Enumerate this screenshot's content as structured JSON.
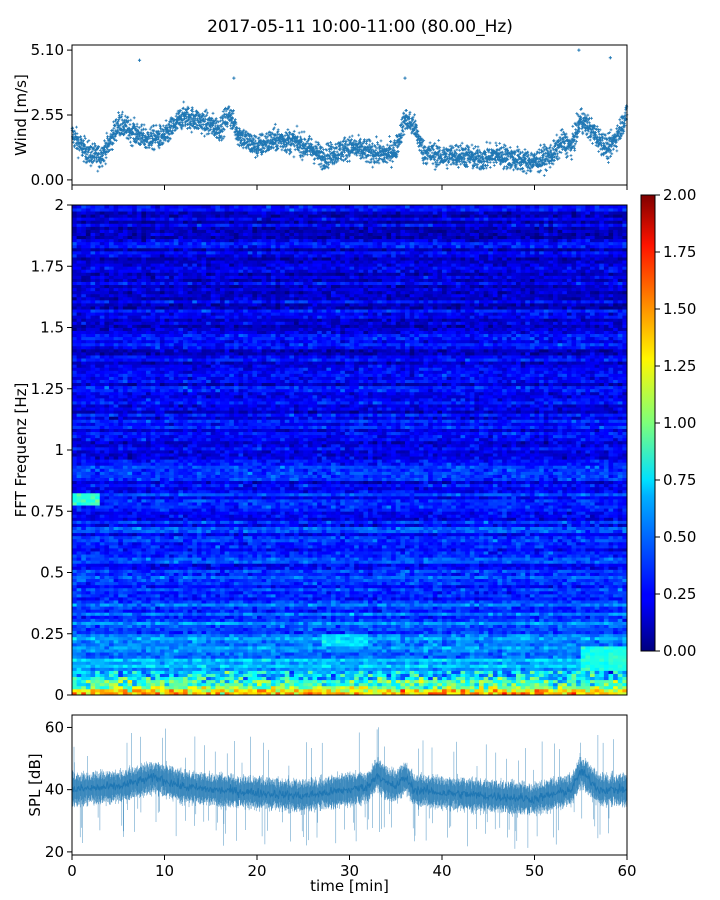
{
  "chart_data": [
    {
      "type": "scatter",
      "title": "2017-05-11 10:00-11:00 (80.00_Hz)",
      "ylabel": "Wind [m/s]",
      "xlim": [
        0,
        60
      ],
      "ylim": [
        -0.2,
        5.3
      ],
      "yticks": [
        "0.00",
        "2.55",
        "5.10"
      ],
      "ytick_values": [
        0,
        2.55,
        5.1
      ],
      "marker": "+",
      "color": "#1f77b4",
      "samples_per_minute": 60,
      "trend": {
        "x": [
          0,
          1,
          2,
          3,
          4,
          5,
          6,
          8,
          10,
          12,
          14,
          16,
          17,
          18,
          19,
          20,
          22,
          24,
          26,
          27,
          28,
          30,
          32,
          34,
          35,
          36,
          37,
          38,
          40,
          42,
          44,
          46,
          48,
          50,
          52,
          53,
          54,
          55,
          56,
          57,
          58,
          59,
          60
        ],
        "y": [
          1.8,
          1.3,
          1.0,
          0.9,
          1.4,
          2.2,
          2.0,
          1.6,
          1.7,
          2.5,
          2.3,
          2.0,
          2.6,
          1.8,
          1.5,
          1.3,
          1.6,
          1.5,
          1.2,
          0.9,
          1.0,
          1.3,
          1.1,
          1.0,
          1.2,
          2.4,
          2.1,
          1.1,
          0.9,
          1.0,
          0.8,
          1.0,
          0.8,
          0.7,
          1.0,
          1.5,
          1.3,
          2.4,
          2.0,
          1.6,
          1.2,
          1.8,
          2.6
        ]
      },
      "spread": 0.45,
      "peaks": [
        {
          "x": 54.8,
          "y": 5.1
        },
        {
          "x": 7.3,
          "y": 4.7
        },
        {
          "x": 58.2,
          "y": 4.8
        },
        {
          "x": 36.0,
          "y": 4.0
        },
        {
          "x": 17.5,
          "y": 4.0
        }
      ]
    },
    {
      "type": "heatmap",
      "ylabel": "FFT Frequenz [Hz]",
      "xlim": [
        0,
        60
      ],
      "ylim": [
        0,
        2
      ],
      "yticks": [
        "0",
        "0.25",
        "0.5",
        "0.75",
        "1",
        "1.25",
        "1.5",
        "1.75",
        "2"
      ],
      "ytick_values": [
        0,
        0.25,
        0.5,
        0.75,
        1,
        1.25,
        1.5,
        1.75,
        2
      ],
      "colormap": "jet",
      "colorbar": {
        "range": [
          0,
          2
        ],
        "ticks": [
          "0.00",
          "0.25",
          "0.50",
          "0.75",
          "1.00",
          "1.25",
          "1.50",
          "1.75",
          "2.00"
        ],
        "tick_values": [
          0,
          0.25,
          0.5,
          0.75,
          1,
          1.25,
          1.5,
          1.75,
          2
        ]
      },
      "time_bins": 120,
      "freq_bins": 160,
      "base_profile": {
        "freq": [
          0,
          0.02,
          0.05,
          0.1,
          0.15,
          0.25,
          0.5,
          1.0,
          1.5,
          2.0
        ],
        "value": [
          1.6,
          1.2,
          0.85,
          0.65,
          0.55,
          0.45,
          0.35,
          0.25,
          0.2,
          0.2
        ]
      },
      "features": [
        {
          "note": "bright band",
          "time": [
            0,
            3
          ],
          "freq": [
            0.78,
            0.82
          ],
          "value": 0.85
        },
        {
          "note": "bright band",
          "time": [
            55,
            60
          ],
          "freq": [
            0.1,
            0.2
          ],
          "value": 0.8
        },
        {
          "note": "bright band",
          "time": [
            27,
            32
          ],
          "freq": [
            0.2,
            0.25
          ],
          "value": 0.7
        }
      ]
    },
    {
      "type": "area",
      "ylabel": "SPL [dB]",
      "xlabel": "time [min]",
      "xlim": [
        0,
        60
      ],
      "xticks": [
        "0",
        "10",
        "20",
        "30",
        "40",
        "50",
        "60"
      ],
      "xtick_values": [
        0,
        10,
        20,
        30,
        40,
        50,
        60
      ],
      "ylim": [
        19,
        64
      ],
      "yticks": [
        "20",
        "40",
        "60"
      ],
      "ytick_values": [
        20,
        40,
        60
      ],
      "color": "#1f77b4",
      "mean": {
        "x": [
          0,
          5,
          9,
          12,
          15,
          20,
          25,
          30,
          32,
          33,
          34,
          35,
          36,
          37,
          40,
          45,
          50,
          54,
          55,
          57,
          60
        ],
        "y": [
          40,
          41,
          44,
          41,
          40,
          39,
          38,
          40,
          41,
          45,
          42,
          41,
          44,
          40,
          39,
          38,
          37,
          40,
          46,
          40,
          40
        ]
      },
      "band_halfwidth": 4,
      "spike_max": 61
    }
  ]
}
